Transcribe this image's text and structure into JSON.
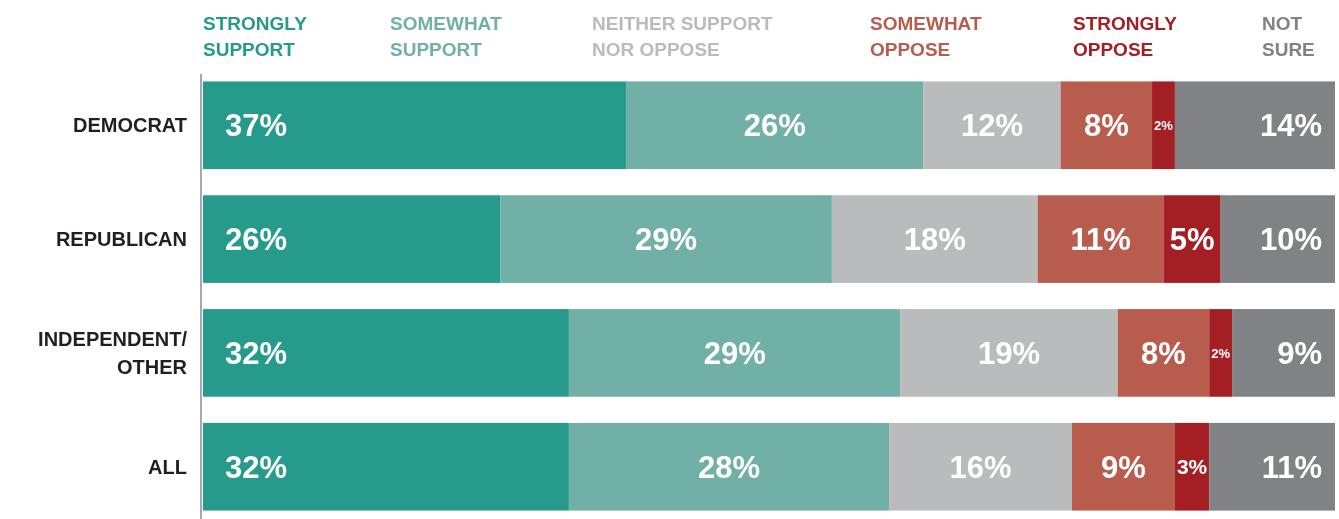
{
  "chart_data": {
    "type": "bar",
    "orientation": "horizontal",
    "stacked": true,
    "legend": "top",
    "tick_labels": "y",
    "categories": [
      "DEMOCRAT",
      "REPUBLICAN",
      "INDEPENDENT/\nOTHER",
      "ALL"
    ],
    "series": [
      {
        "name": "STRONGLY\nSUPPORT",
        "color": "#279b8b",
        "values": [
          37,
          26,
          32,
          32
        ],
        "value_labels": [
          "37%",
          "26%",
          "32%",
          "32%"
        ]
      },
      {
        "name": "SOMEWHAT\nSUPPORT",
        "color": "#70b0a7",
        "values": [
          26,
          29,
          29,
          28
        ],
        "value_labels": [
          "26%",
          "29%",
          "29%",
          "28%"
        ]
      },
      {
        "name": "NEITHER SUPPORT\nNOR OPPOSE",
        "color": "#b9bbbd",
        "values": [
          12,
          18,
          19,
          16
        ],
        "value_labels": [
          "12%",
          "18%",
          "19%",
          "16%"
        ]
      },
      {
        "name": "SOMEWHAT\nOPPOSE",
        "color": "#b85c4d",
        "values": [
          8,
          11,
          8,
          9
        ],
        "value_labels": [
          "8%",
          "11%",
          "8%",
          "9%"
        ]
      },
      {
        "name": "STRONGLY\nOPPOSE",
        "color": "#a31f24",
        "values": [
          2,
          5,
          2,
          3
        ],
        "value_labels": [
          "2%",
          "5%",
          "2%",
          "3%"
        ]
      },
      {
        "name": "NOT\nSURE",
        "color": "#808285",
        "values": [
          14,
          10,
          9,
          11
        ],
        "value_labels": [
          "14%",
          "10%",
          "9%",
          "11%"
        ]
      }
    ]
  }
}
